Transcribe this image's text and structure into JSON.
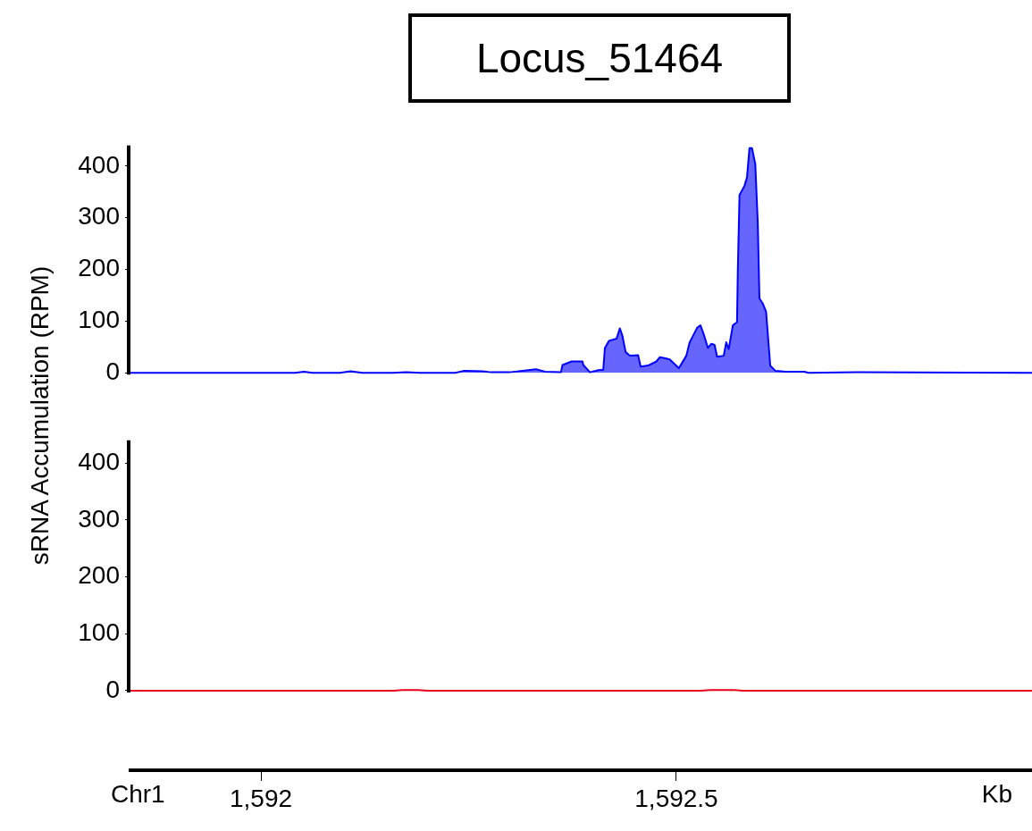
{
  "chart_data": [
    {
      "type": "area",
      "title": "Locus_51464",
      "ylabel": "sRNA Accumulation (RPM)",
      "xlim": [
        1591.843,
        1592.928
      ],
      "ylim": [
        0,
        440
      ],
      "yticks": [
        0,
        100,
        200,
        300,
        400
      ],
      "tick_labels": "y",
      "grid": false,
      "legend": false,
      "series": [
        {
          "color": "#0000ff",
          "x": [
            1591.843,
            1592.041,
            1592.052,
            1592.062,
            1592.095,
            1592.108,
            1592.122,
            1592.159,
            1592.175,
            1592.191,
            1592.234,
            1592.245,
            1592.267,
            1592.277,
            1592.299,
            1592.315,
            1592.331,
            1592.342,
            1592.361,
            1592.363,
            1592.374,
            1592.387,
            1592.388,
            1592.396,
            1592.406,
            1592.412,
            1592.414,
            1592.419,
            1592.428,
            1592.432,
            1592.435,
            1592.439,
            1592.444,
            1592.454,
            1592.457,
            1592.466,
            1592.476,
            1592.48,
            1592.487,
            1592.492,
            1592.503,
            1592.512,
            1592.516,
            1592.525,
            1592.529,
            1592.533,
            1592.538,
            1592.542,
            1592.546,
            1592.549,
            1592.557,
            1592.56,
            1592.563,
            1592.568,
            1592.573,
            1592.574,
            1592.576,
            1592.582,
            1592.585,
            1592.588,
            1592.591,
            1592.595,
            1592.598,
            1592.6,
            1592.604,
            1592.608,
            1592.613,
            1592.619,
            1592.632,
            1592.654,
            1592.659,
            1592.718,
            1592.928
          ],
          "values": [
            0,
            0,
            2,
            0,
            0,
            3,
            0,
            0,
            1,
            0,
            0,
            4,
            3,
            1,
            1,
            4,
            7,
            2,
            1,
            15,
            22,
            22,
            15,
            1,
            5,
            6,
            48,
            62,
            66,
            86,
            72,
            40,
            33,
            34,
            12,
            14,
            22,
            30,
            28,
            26,
            9,
            33,
            59,
            87,
            92,
            74,
            48,
            56,
            54,
            31,
            33,
            59,
            46,
            92,
            98,
            201,
            344,
            362,
            378,
            435,
            435,
            404,
            290,
            144,
            134,
            118,
            14,
            4,
            2,
            2,
            0,
            1,
            0
          ]
        }
      ]
    },
    {
      "type": "line",
      "xlabel": "Kb",
      "annotations": [
        "Chr1"
      ],
      "xlim": [
        1591.843,
        1592.928
      ],
      "xticks": [
        {
          "value": 1592,
          "label": "1,592"
        },
        {
          "value": 1592.5,
          "label": "1,592.5"
        }
      ],
      "ylim": [
        -140,
        440
      ],
      "yticks": [
        0,
        100,
        200,
        300,
        400
      ],
      "grid": false,
      "legend": false,
      "series": [
        {
          "color": "#e8001c",
          "x": [
            1591.843,
            1592.16,
            1592.17,
            1592.19,
            1592.2,
            1592.53,
            1592.54,
            1592.57,
            1592.58,
            1592.928
          ],
          "values": [
            0,
            0,
            1,
            1,
            0,
            0,
            1,
            1,
            0,
            0
          ]
        }
      ]
    }
  ]
}
